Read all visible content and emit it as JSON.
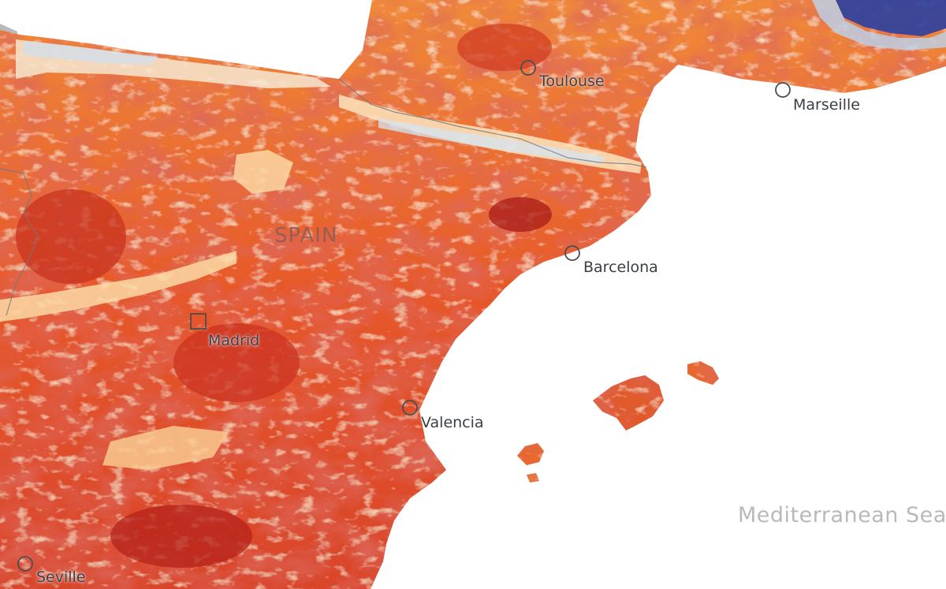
{
  "map": {
    "country_label": "SPAIN",
    "sea_label": "Mediterranean Sea",
    "cities": [
      {
        "key": "toulouse",
        "name": "Toulouse",
        "marker": "circle"
      },
      {
        "key": "marseille",
        "name": "Marseille",
        "marker": "circle"
      },
      {
        "key": "barcelona",
        "name": "Barcelona",
        "marker": "circle"
      },
      {
        "key": "madrid",
        "name": "Madrid",
        "marker": "square"
      },
      {
        "key": "valencia",
        "name": "Valencia",
        "marker": "circle"
      },
      {
        "key": "seville",
        "name": "Seville",
        "marker": "circle"
      }
    ],
    "colors": {
      "sea": "#ffffff",
      "land_hot": "#e8602c",
      "land_hotter": "#b8231c",
      "land_cool": "#fbe7c2",
      "land_coldest": "#2a3fa0",
      "label": "#3a3f44"
    }
  }
}
